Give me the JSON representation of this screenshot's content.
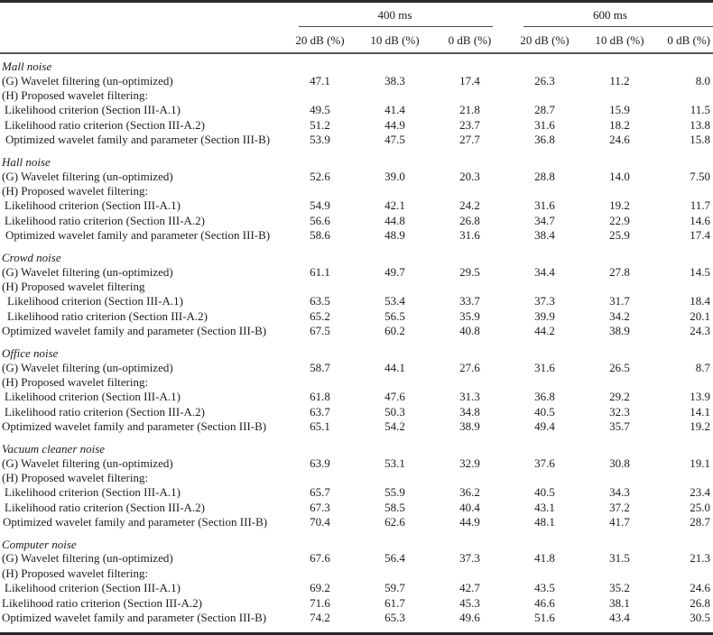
{
  "table": {
    "col_groups": [
      {
        "label": "400 ms"
      },
      {
        "label": "600 ms"
      }
    ],
    "sub_headers": [
      "20 dB (%)",
      "10 dB (%)",
      "0 dB (%)",
      "20 dB (%)",
      "10 dB (%)",
      "0 dB (%)"
    ],
    "rule_color": "#4a4a4a",
    "heavy_rule_color": "#262626",
    "text_color": "#1c1c1c",
    "sections": [
      {
        "title": "Mall noise",
        "rows": [
          {
            "label": "(G) Wavelet filtering (un-optimized)",
            "indent": 0,
            "values": [
              "47.1",
              "38.3",
              "17.4",
              "26.3",
              "11.2",
              "8.0"
            ]
          },
          {
            "label": "(H) Proposed wavelet filtering:",
            "indent": 0,
            "values": []
          },
          {
            "label": "Likelihood criterion (Section III-A.1)",
            "indent": 3,
            "values": [
              "49.5",
              "41.4",
              "21.8",
              "28.7",
              "15.9",
              "11.5"
            ]
          },
          {
            "label": "Likelihood ratio criterion (Section III-A.2)",
            "indent": 3,
            "values": [
              "51.2",
              "44.9",
              "23.7",
              "31.6",
              "18.2",
              "13.8"
            ]
          },
          {
            "label": "Optimized wavelet family and parameter (Section III-B)",
            "indent": 4,
            "values": [
              "53.9",
              "47.5",
              "27.7",
              "36.8",
              "24.6",
              "15.8"
            ]
          }
        ]
      },
      {
        "title": "Hall noise",
        "rows": [
          {
            "label": "(G) Wavelet filtering (un-optimized)",
            "indent": 0,
            "values": [
              "52.6",
              "39.0",
              "20.3",
              "28.8",
              "14.0",
              "7.50"
            ]
          },
          {
            "label": "(H) Proposed wavelet filtering:",
            "indent": 0,
            "values": []
          },
          {
            "label": "Likelihood criterion (Section III-A.1)",
            "indent": 3,
            "values": [
              "54.9",
              "42.1",
              "24.2",
              "31.6",
              "19.2",
              "11.7"
            ]
          },
          {
            "label": "Likelihood ratio criterion (Section III-A.2)",
            "indent": 3,
            "values": [
              "56.6",
              "44.8",
              "26.8",
              "34.7",
              "22.9",
              "14.6"
            ]
          },
          {
            "label": "Optimized wavelet family and parameter (Section III-B)",
            "indent": 4,
            "values": [
              "58.6",
              "48.9",
              "31.6",
              "38.4",
              "25.9",
              "17.4"
            ]
          }
        ]
      },
      {
        "title": "Crowd noise",
        "rows": [
          {
            "label": "(G) Wavelet filtering (un-optimized)",
            "indent": 0,
            "values": [
              "61.1",
              "49.7",
              "29.5",
              "34.4",
              "27.8",
              "14.5"
            ]
          },
          {
            "label": "(H) Proposed wavelet filtering",
            "indent": 0,
            "values": []
          },
          {
            "label": "Likelihood criterion (Section III-A.1)",
            "indent": 6,
            "values": [
              "63.5",
              "53.4",
              "33.7",
              "37.3",
              "31.7",
              "18.4"
            ]
          },
          {
            "label": "Likelihood ratio criterion (Section III-A.2)",
            "indent": 6,
            "values": [
              "65.2",
              "56.5",
              "35.9",
              "39.9",
              "34.2",
              "20.1"
            ]
          },
          {
            "label": "Optimized wavelet family and parameter (Section III-B)",
            "indent": 0,
            "values": [
              "67.5",
              "60.2",
              "40.8",
              "44.2",
              "38.9",
              "24.3"
            ]
          }
        ]
      },
      {
        "title": "Office noise",
        "rows": [
          {
            "label": "(G) Wavelet filtering (un-optimized)",
            "indent": 0,
            "values": [
              "58.7",
              "44.1",
              "27.6",
              "31.6",
              "26.5",
              "8.7"
            ]
          },
          {
            "label": "(H) Proposed wavelet filtering:",
            "indent": 0,
            "values": []
          },
          {
            "label": "Likelihood criterion (Section III-A.1)",
            "indent": 3,
            "values": [
              "61.8",
              "47.6",
              "31.3",
              "36.8",
              "29.2",
              "13.9"
            ]
          },
          {
            "label": "Likelihood ratio criterion (Section III-A.2)",
            "indent": 3,
            "values": [
              "63.7",
              "50.3",
              "34.8",
              "40.5",
              "32.3",
              "14.1"
            ]
          },
          {
            "label": "Optimized wavelet family and parameter (Section III-B)",
            "indent": 0,
            "values": [
              "65.1",
              "54.2",
              "38.9",
              "49.4",
              "35.7",
              "19.2"
            ]
          }
        ]
      },
      {
        "title": "Vacuum cleaner noise",
        "rows": [
          {
            "label": "(G) Wavelet filtering (un-optimized)",
            "indent": 0,
            "values": [
              "63.9",
              "53.1",
              "32.9",
              "37.6",
              "30.8",
              "19.1"
            ]
          },
          {
            "label": "(H) Proposed wavelet filtering:",
            "indent": 0,
            "values": []
          },
          {
            "label": "Likelihood criterion (Section III-A.1)",
            "indent": 3,
            "values": [
              "65.7",
              "55.9",
              "36.2",
              "40.5",
              "34.3",
              "23.4"
            ]
          },
          {
            "label": "Likelihood ratio criterion (Section III-A.2)",
            "indent": 3,
            "values": [
              "67.3",
              "58.5",
              "40.4",
              "43.1",
              "37.2",
              "25.0"
            ]
          },
          {
            "label": "Optimized wavelet family and parameter (Section III-B)",
            "indent": 1,
            "values": [
              "70.4",
              "62.6",
              "44.9",
              "48.1",
              "41.7",
              "28.7"
            ]
          }
        ]
      },
      {
        "title": "Computer noise",
        "rows": [
          {
            "label": "(G) Wavelet filtering (un-optimized)",
            "indent": 0,
            "values": [
              "67.6",
              "56.4",
              "37.3",
              "41.8",
              "31.5",
              "21.3"
            ]
          },
          {
            "label": "(H) Proposed wavelet filtering:",
            "indent": 0,
            "values": []
          },
          {
            "label": "Likelihood criterion (Section III-A.1)",
            "indent": 3,
            "values": [
              "69.2",
              "59.7",
              "42.7",
              "43.5",
              "35.2",
              "24.6"
            ]
          },
          {
            "label": "Likelihood ratio criterion (Section III-A.2)",
            "indent": 0,
            "values": [
              "71.6",
              "61.7",
              "45.3",
              "46.6",
              "38.1",
              "26.8"
            ]
          },
          {
            "label": "Optimized wavelet family and parameter (Section III-B)",
            "indent": 0,
            "values": [
              "74.2",
              "65.3",
              "49.6",
              "51.6",
              "43.4",
              "30.5"
            ]
          }
        ]
      }
    ]
  }
}
